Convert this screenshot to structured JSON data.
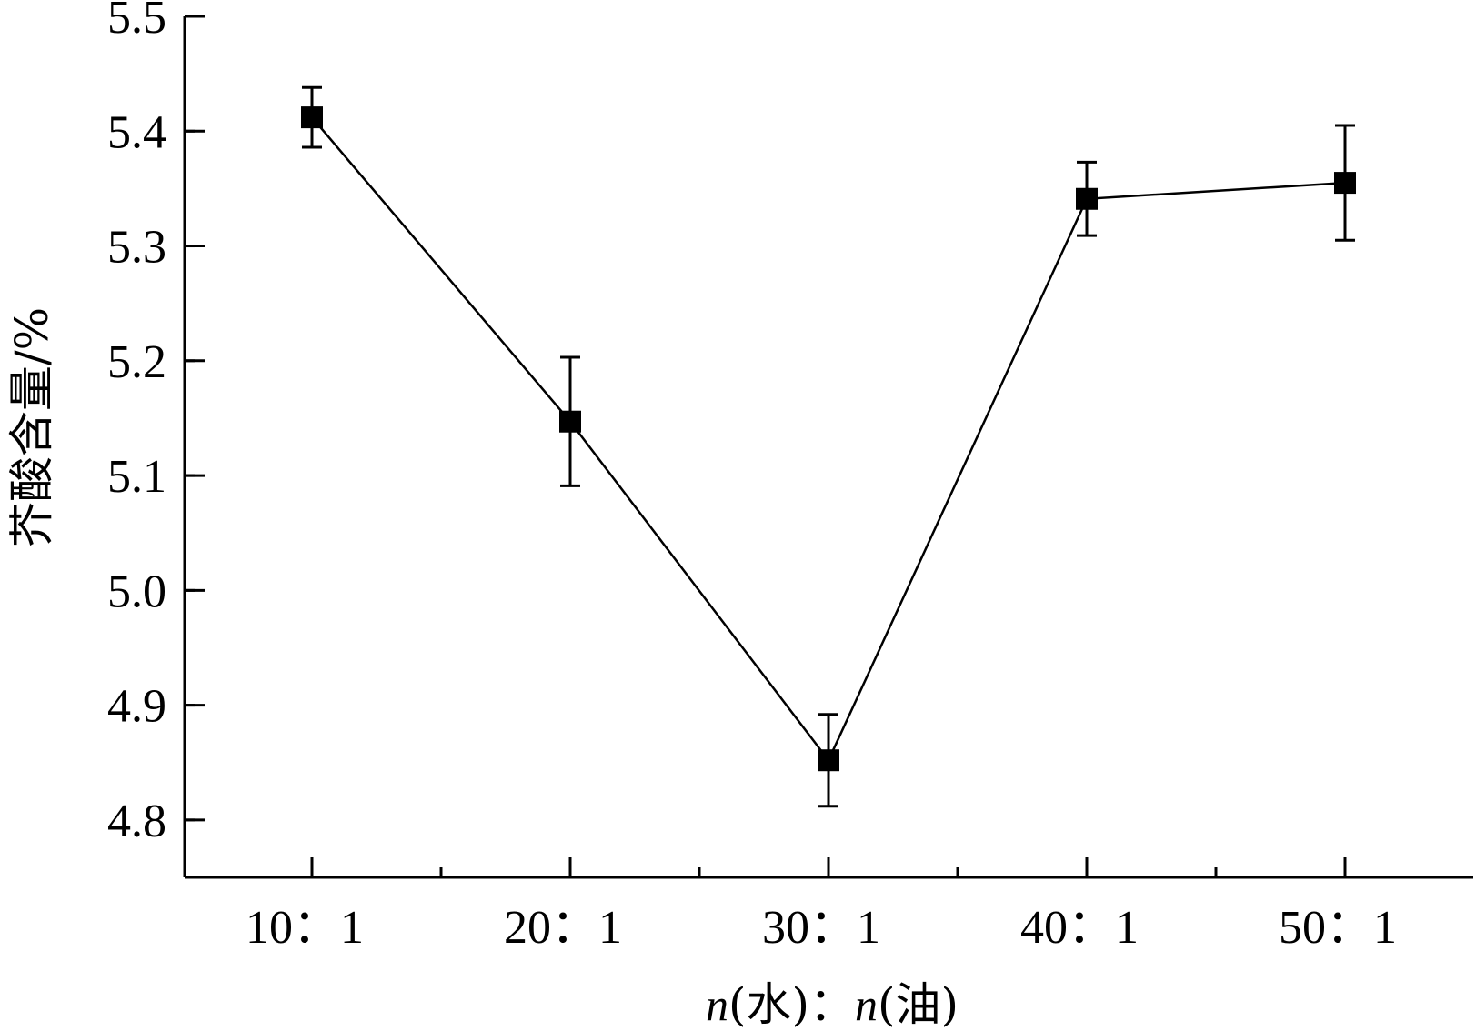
{
  "chart_data": {
    "type": "line",
    "title": "",
    "xlabel": "n(水)：n(油)",
    "ylabel": "芥酸含量/%",
    "categories": [
      "10：1",
      "20：1",
      "30：1",
      "40：1",
      "50：1"
    ],
    "series": [
      {
        "values": [
          5.412,
          5.147,
          4.852,
          5.341,
          5.355
        ],
        "error": [
          0.026,
          0.056,
          0.04,
          0.032,
          0.05
        ],
        "marker": "square",
        "color": "#000000"
      }
    ],
    "ylim": [
      4.75,
      5.5
    ],
    "yticks": [
      "4.8",
      "4.9",
      "5.0",
      "5.1",
      "5.2",
      "5.3",
      "5.4",
      "5.5"
    ],
    "grid": false,
    "legend": "none"
  }
}
